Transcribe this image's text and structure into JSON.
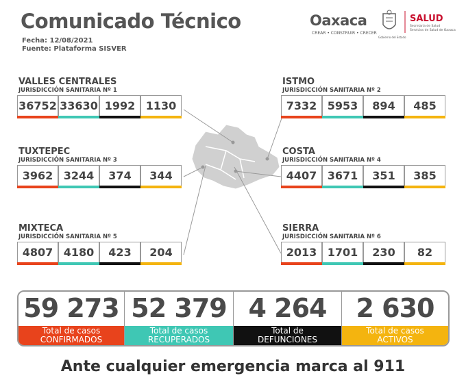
{
  "header": {
    "title": "Comunicado Técnico",
    "date": "Fecha: 12/08/2021",
    "source": "Fuente: Plataforma SISVER",
    "logo_text": "Oaxaca",
    "logo_tagline": "CREAR • CONSTRUIR • CRECER",
    "crest_caption": "Gobierno del Estado",
    "health_title": "SALUD",
    "health_subtitle": [
      "Secretaría de Salud",
      "Servicios de Salud de Oaxaca"
    ]
  },
  "regions": [
    {
      "name": "VALLES CENTRALES",
      "jurisdiction": "JURISDICCIÓN SANITARIA Nº 1",
      "values": [
        36752,
        33630,
        1992,
        1130
      ]
    },
    {
      "name": "ISTMO",
      "jurisdiction": "JURISDICCIÓN SANITARIA Nº 2",
      "values": [
        7332,
        5953,
        894,
        485
      ]
    },
    {
      "name": "TUXTEPEC",
      "jurisdiction": "JURISDICCIÓN SANITARIA Nº 3",
      "values": [
        3962,
        3244,
        374,
        344
      ]
    },
    {
      "name": "COSTA",
      "jurisdiction": "JURISDICCIÓN SANITARIA Nº 4",
      "values": [
        4407,
        3671,
        351,
        385
      ]
    },
    {
      "name": "MIXTECA",
      "jurisdiction": "JURISDICCIÓN SANITARIA Nº 5",
      "values": [
        4807,
        4180,
        423,
        204
      ]
    },
    {
      "name": "SIERRA",
      "jurisdiction": "JURISDICCIÓN SANITARIA Nº 6",
      "values": [
        2013,
        1701,
        230,
        82
      ]
    }
  ],
  "totals": [
    {
      "value": "59 273",
      "label": [
        "Total de casos",
        "CONFIRMADOS"
      ]
    },
    {
      "value": "52 379",
      "label": [
        "Total de casos",
        "RECUPERADOS"
      ]
    },
    {
      "value": "4 264",
      "label": [
        "Total de",
        "DEFUNCIONES"
      ]
    },
    {
      "value": "2 630",
      "label": [
        "Total de casos",
        "ACTIVOS"
      ]
    }
  ],
  "footer": "Ante cualquier emergencia marca al 911"
}
